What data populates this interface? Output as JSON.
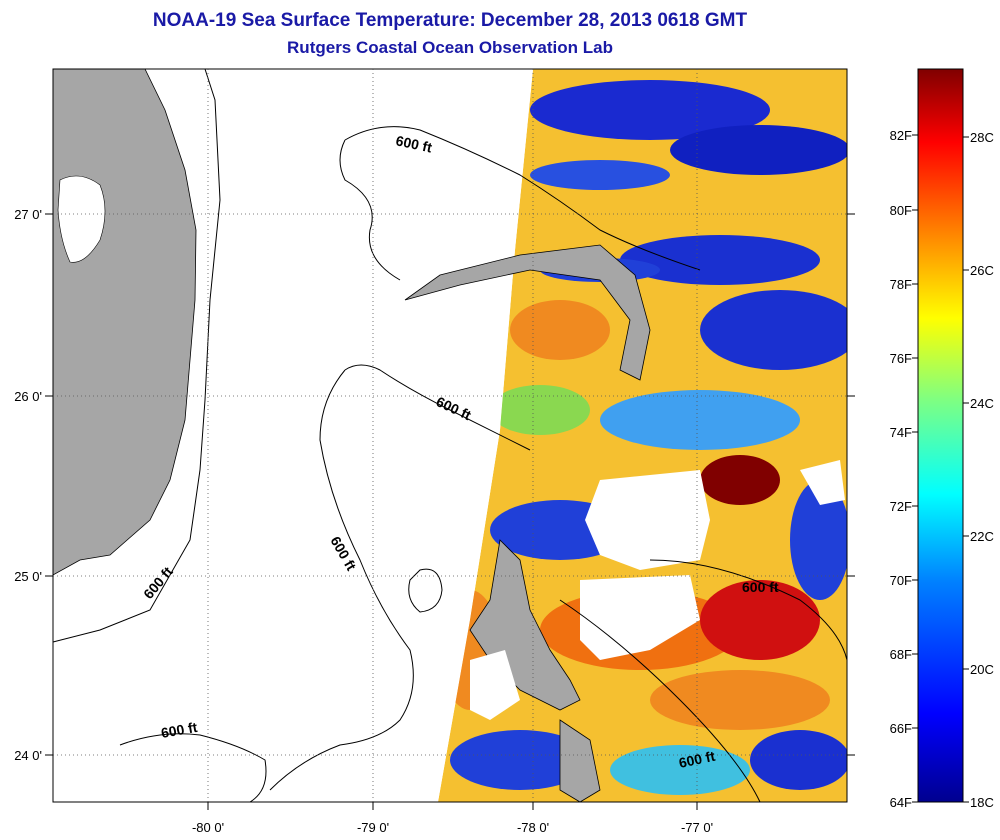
{
  "title": "NOAA-19 Sea Surface Temperature:  December 28, 2013 0618 GMT",
  "subtitle": "Rutgers Coastal Ocean Observation Lab",
  "map": {
    "lon_ticks": [
      "-80 0'",
      "-79 0'",
      "-78 0'",
      "-77 0'"
    ],
    "lat_ticks": [
      "24 0'",
      "25 0'",
      "26 0'",
      "27 0'"
    ],
    "contour_labels": [
      "600 ft",
      "600 ft",
      "600 ft",
      "600 ft",
      "600 ft",
      "600 ft"
    ],
    "colors": {
      "land": "#a6a6a6",
      "cloud": "#ffffff",
      "contour": "#000000"
    }
  },
  "colorbar": {
    "fahrenheit_labels": [
      "82F",
      "80F",
      "78F",
      "76F",
      "74F",
      "72F",
      "70F",
      "68F",
      "66F",
      "64F"
    ],
    "celsius_labels": [
      "28C",
      "26C",
      "24C",
      "22C",
      "20C",
      "18C"
    ],
    "colors": [
      "#00008f",
      "#0000ff",
      "#0080ff",
      "#00ffff",
      "#80ff80",
      "#ffff00",
      "#ff8000",
      "#ff0000",
      "#800000"
    ]
  }
}
